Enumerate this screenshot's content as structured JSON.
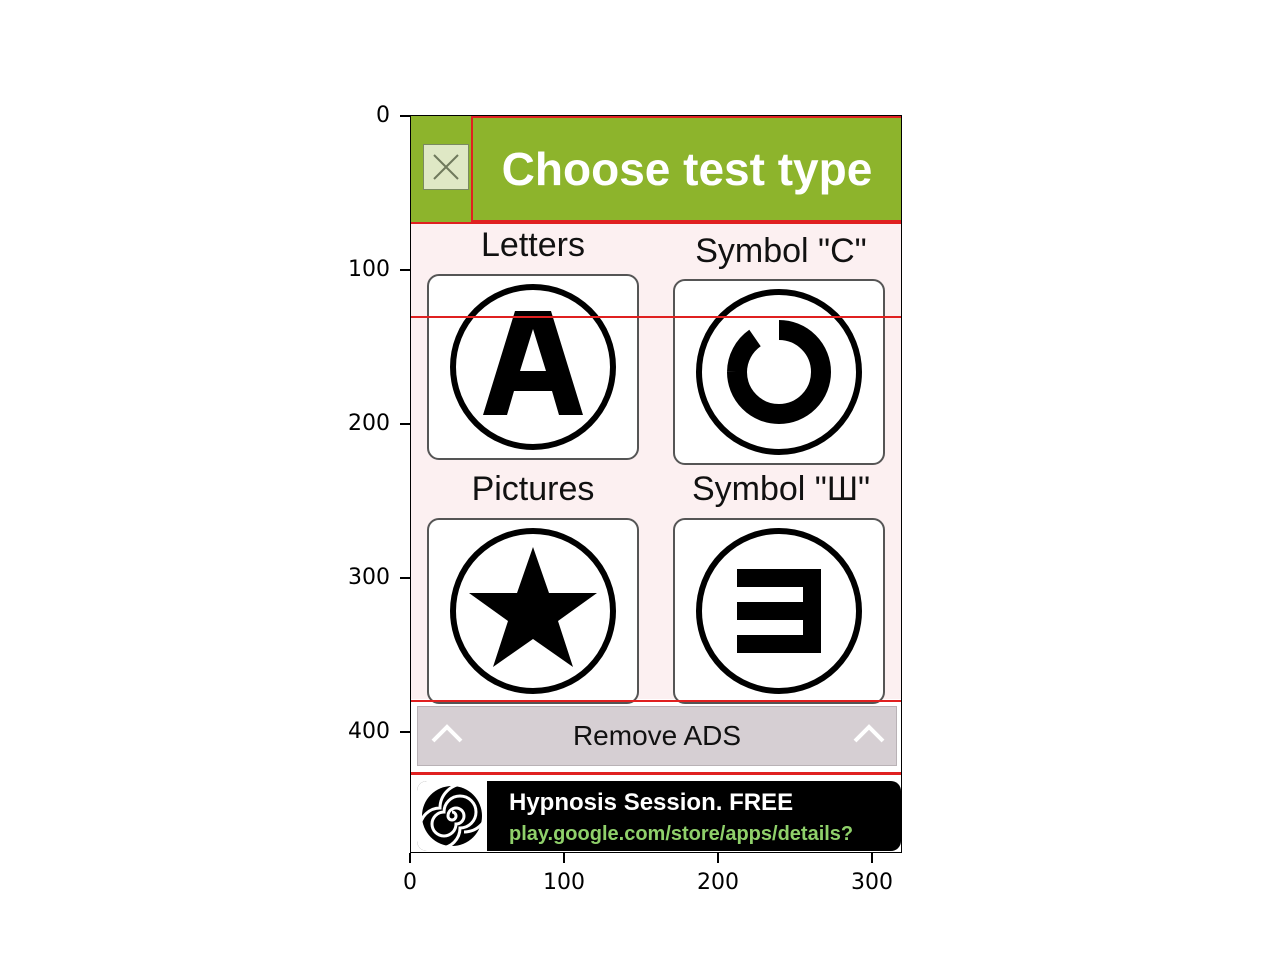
{
  "axes": {
    "y_ticks": [
      "0",
      "100",
      "200",
      "300",
      "400"
    ],
    "x_ticks": [
      "0",
      "100",
      "200",
      "300"
    ]
  },
  "header": {
    "title": "Choose test type",
    "close_icon": "close-icon"
  },
  "options": [
    {
      "label": "Letters",
      "icon": "letter-a-icon"
    },
    {
      "label": "Symbol \"C\"",
      "icon": "landolt-c-icon"
    },
    {
      "label": "Pictures",
      "icon": "star-icon"
    },
    {
      "label": "Symbol \"Ш\"",
      "icon": "tumbling-e-icon"
    }
  ],
  "remove_ads": {
    "label": "Remove ADS",
    "icon": "chevron-up-icon"
  },
  "ad": {
    "title": "Hypnosis Session. FREE",
    "url": "play.google.com/store/apps/details?",
    "icon": "spiral-icon"
  },
  "colors": {
    "header_bg": "#8db42c",
    "content_bg": "#fcf0f1",
    "highlight": "#e02020",
    "ad_url": "#8fd06a"
  }
}
